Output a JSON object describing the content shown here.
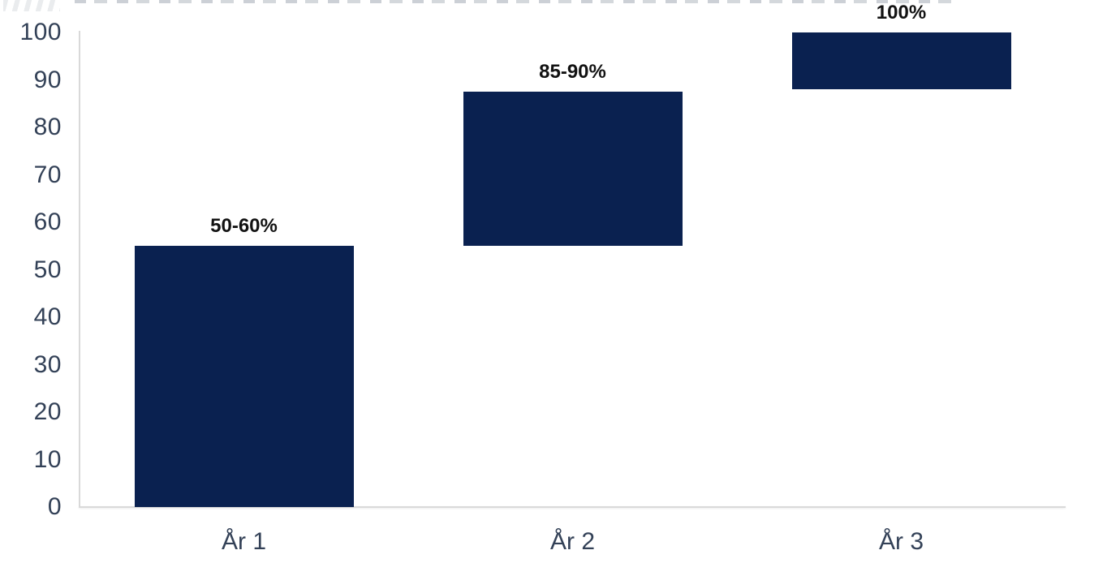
{
  "chart_data": {
    "type": "bar",
    "variant": "floating-range-waterfall",
    "title": "",
    "xlabel": "",
    "ylabel": "",
    "categories": [
      "År 1",
      "År 2",
      "År 3"
    ],
    "bars": [
      {
        "category": "År 1",
        "start": 0,
        "end": 55,
        "label": "50-60%"
      },
      {
        "category": "År 2",
        "start": 55,
        "end": 87.5,
        "label": "85-90%"
      },
      {
        "category": "År 3",
        "start": 88,
        "end": 100,
        "label": "100%"
      }
    ],
    "ylim": [
      0,
      100
    ],
    "y_ticks": [
      0,
      10,
      20,
      30,
      40,
      50,
      60,
      70,
      80,
      90,
      100
    ],
    "grid": false,
    "legend": false
  },
  "colors": {
    "bar": "#0a2150",
    "axis_line": "#d9d9d9",
    "tick_label": "#334157",
    "value_label": "#121212",
    "background": "#ffffff"
  }
}
